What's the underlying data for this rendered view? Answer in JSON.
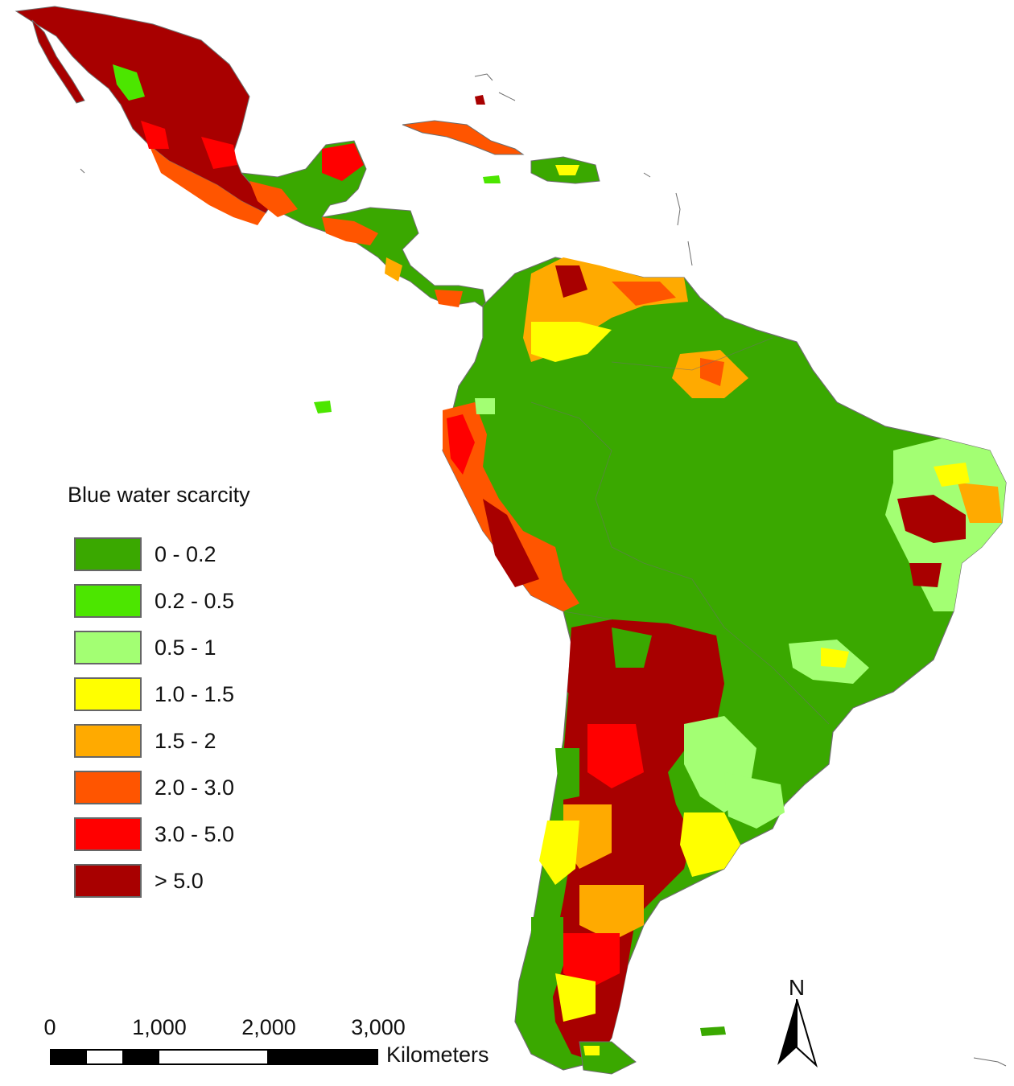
{
  "legend": {
    "title": "Blue water scarcity",
    "classes": [
      {
        "label": "0 - 0.2",
        "color": "#3aa800"
      },
      {
        "label": "0.2 - 0.5",
        "color": "#4ce600"
      },
      {
        "label": "0.5 - 1",
        "color": "#a3ff73"
      },
      {
        "label": "1.0 - 1.5",
        "color": "#ffff00"
      },
      {
        "label": "1.5 - 2",
        "color": "#ffaa00"
      },
      {
        "label": "2.0 - 3.0",
        "color": "#ff5500"
      },
      {
        "label": "3.0 - 5.0",
        "color": "#ff0000"
      },
      {
        "label": "> 5.0",
        "color": "#a80000"
      }
    ]
  },
  "scale_bar": {
    "ticks": [
      "0",
      "1,000",
      "2,000",
      "3,000"
    ],
    "unit": "Kilometers"
  },
  "north_arrow": {
    "letter": "N"
  },
  "colors": {
    "outline": "#6e6e6e",
    "background": "#ffffff"
  }
}
